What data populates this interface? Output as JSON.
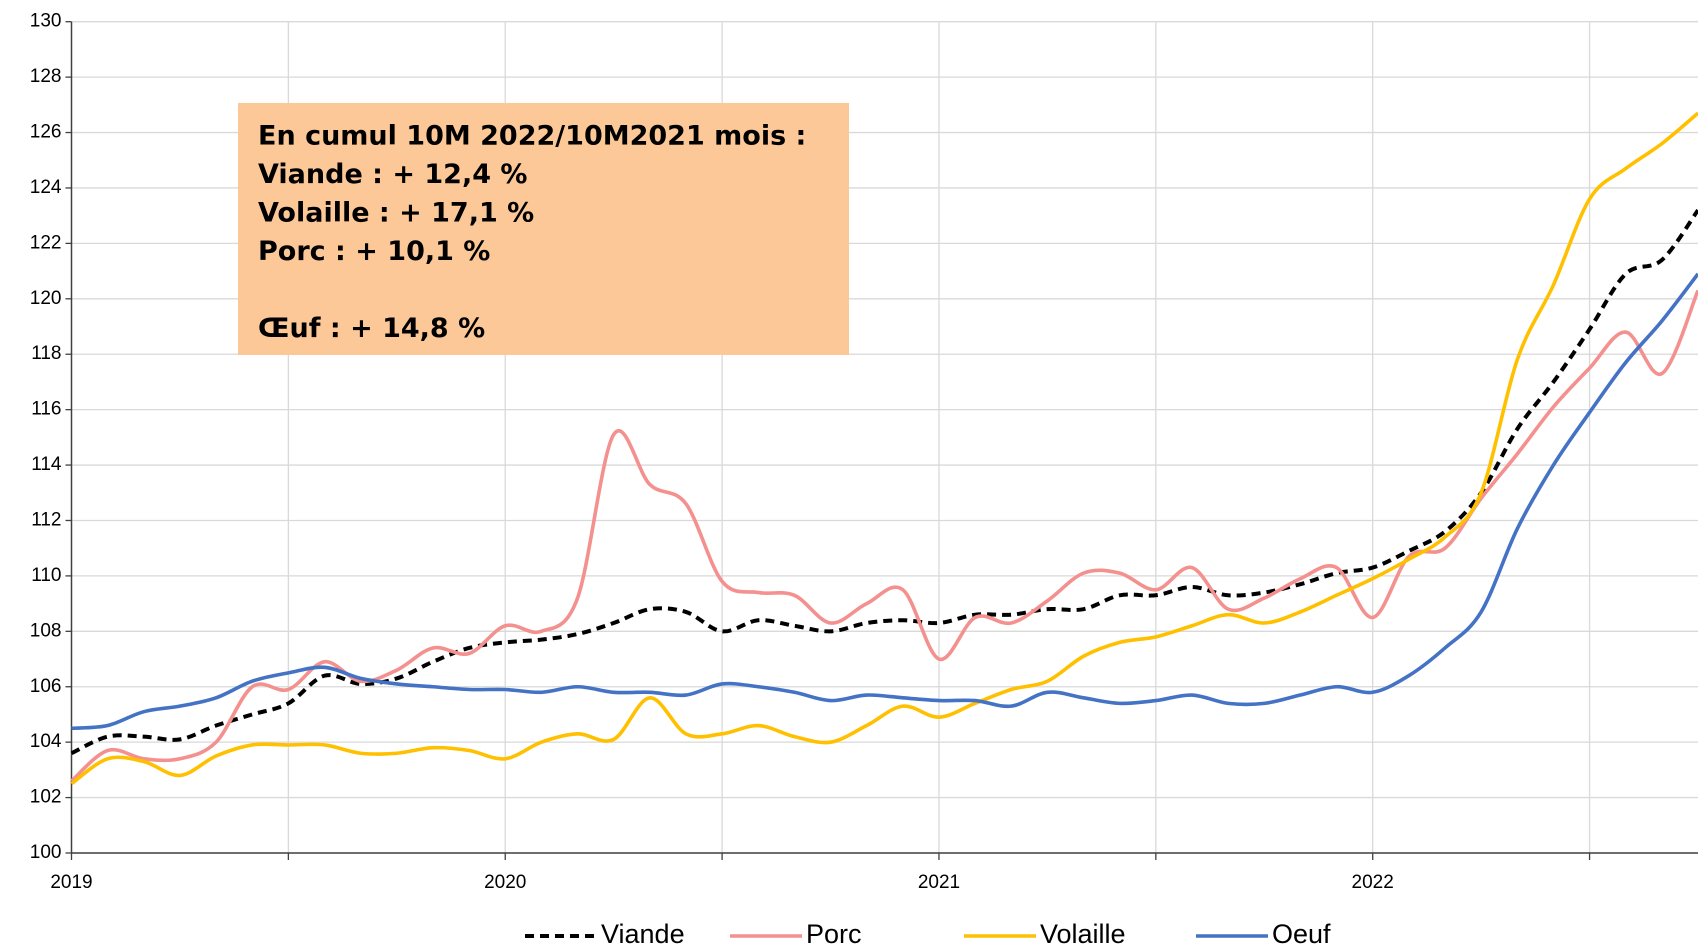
{
  "chart_data": {
    "type": "line",
    "x": [
      2019,
      2019.0833,
      2019.1667,
      2019.25,
      2019.3333,
      2019.4167,
      2019.5,
      2019.5833,
      2019.6667,
      2019.75,
      2019.8333,
      2019.9167,
      2020,
      2020.0833,
      2020.1667,
      2020.25,
      2020.3333,
      2020.4167,
      2020.5,
      2020.5833,
      2020.6667,
      2020.75,
      2020.8333,
      2020.9167,
      2021,
      2021.0833,
      2021.1667,
      2021.25,
      2021.3333,
      2021.4167,
      2021.5,
      2021.5833,
      2021.6667,
      2021.75,
      2021.8333,
      2021.9167,
      2022,
      2022.0833,
      2022.1667,
      2022.25,
      2022.3333,
      2022.4167,
      2022.5,
      2022.5833,
      2022.6667,
      2022.75
    ],
    "series": [
      {
        "name": "Viande",
        "color": "#000000",
        "dash": true,
        "values": [
          103.6,
          104.2,
          104.2,
          104.1,
          104.6,
          105.0,
          105.4,
          106.4,
          106.1,
          106.3,
          106.9,
          107.4,
          107.6,
          107.7,
          107.9,
          108.3,
          108.8,
          108.7,
          108.0,
          108.4,
          108.2,
          108.0,
          108.3,
          108.4,
          108.3,
          108.6,
          108.6,
          108.8,
          108.8,
          109.3,
          109.3,
          109.6,
          109.3,
          109.4,
          109.7,
          110.1,
          110.3,
          110.9,
          111.6,
          113.0,
          115.3,
          117.0,
          118.9,
          120.9,
          121.4,
          123.2
        ]
      },
      {
        "name": "Porc",
        "color": "#f4908e",
        "dash": false,
        "values": [
          102.6,
          103.7,
          103.4,
          103.4,
          104.0,
          106.0,
          105.9,
          106.9,
          106.2,
          106.6,
          107.4,
          107.2,
          108.2,
          108.0,
          109.2,
          115.1,
          113.3,
          112.6,
          109.8,
          109.4,
          109.3,
          108.3,
          109.0,
          109.5,
          107.0,
          108.5,
          108.3,
          109.1,
          110.1,
          110.1,
          109.5,
          110.3,
          108.8,
          109.2,
          109.9,
          110.3,
          108.5,
          110.7,
          111.0,
          112.8,
          114.4,
          116.1,
          117.5,
          118.8,
          117.3,
          120.3
        ]
      },
      {
        "name": "Volaille",
        "color": "#ffc000",
        "dash": false,
        "values": [
          102.5,
          103.4,
          103.3,
          102.8,
          103.5,
          103.9,
          103.9,
          103.9,
          103.6,
          103.6,
          103.8,
          103.7,
          103.4,
          104.0,
          104.3,
          104.1,
          105.6,
          104.3,
          104.3,
          104.6,
          104.2,
          104.0,
          104.6,
          105.3,
          104.9,
          105.4,
          105.9,
          106.2,
          107.1,
          107.6,
          107.8,
          108.2,
          108.6,
          108.3,
          108.7,
          109.3,
          109.9,
          110.6,
          111.4,
          113.0,
          117.8,
          120.5,
          123.6,
          124.7,
          125.6,
          126.7
        ]
      },
      {
        "name": "Oeuf",
        "color": "#4472c4",
        "dash": false,
        "values": [
          104.5,
          104.6,
          105.1,
          105.3,
          105.6,
          106.2,
          106.5,
          106.7,
          106.3,
          106.1,
          106.0,
          105.9,
          105.9,
          105.8,
          106.0,
          105.8,
          105.8,
          105.7,
          106.1,
          106.0,
          105.8,
          105.5,
          105.7,
          105.6,
          105.5,
          105.5,
          105.3,
          105.8,
          105.6,
          105.4,
          105.5,
          105.7,
          105.4,
          105.4,
          105.7,
          106.0,
          105.8,
          106.4,
          107.4,
          108.7,
          111.7,
          114.0,
          115.9,
          117.7,
          119.2,
          120.9
        ]
      }
    ],
    "xlim": [
      2019,
      2022.75
    ],
    "xticks": [
      2019,
      2020,
      2021,
      2022
    ],
    "xminorticks": [
      2019.5,
      2020.5,
      2021.5,
      2022.5
    ],
    "ylim": [
      100,
      130
    ],
    "yticks": [
      100,
      102,
      104,
      106,
      108,
      110,
      112,
      114,
      116,
      118,
      120,
      122,
      124,
      126,
      128,
      130
    ],
    "grid": true,
    "legend": "bottom",
    "annotation": [
      "En cumul 10M 2022/10M2021 mois :",
      "Viande : + 12,4 %",
      "Volaille : + 17,1 %",
      "Porc :  + 10,1 %",
      "Œuf : + 14,8 %"
    ]
  }
}
